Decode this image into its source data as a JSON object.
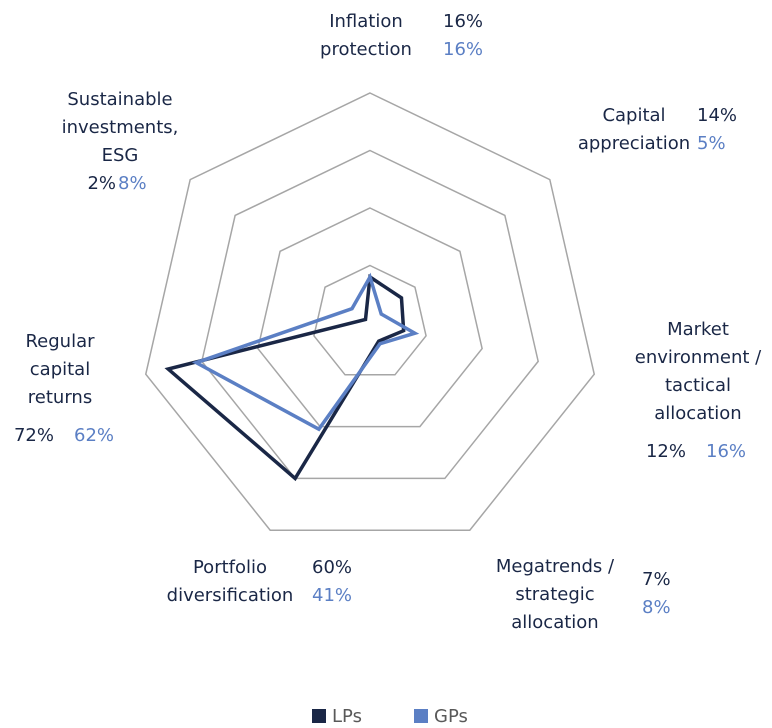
{
  "chart_data": {
    "type": "radar",
    "categories": [
      [
        "Inflation",
        "protection"
      ],
      [
        "Capital",
        "appreciation"
      ],
      [
        "Market",
        "environment /",
        "tactical",
        "allocation"
      ],
      [
        "Megatrends /",
        "strategic",
        "allocation"
      ],
      [
        "Portfolio",
        "diversification"
      ],
      [
        "Regular",
        "capital",
        "returns"
      ],
      [
        "Sustainable",
        "investments,",
        "ESG"
      ]
    ],
    "series": [
      {
        "name": "LPs",
        "color": "#1a2746",
        "values": [
          16,
          14,
          12,
          7,
          60,
          72,
          2
        ],
        "value_labels": [
          "16%",
          "14%",
          "12%",
          "7%",
          "60%",
          "72%",
          "2%"
        ]
      },
      {
        "name": "GPs",
        "color": "#5b7fc4",
        "values": [
          16,
          5,
          16,
          8,
          41,
          62,
          8
        ],
        "value_labels": [
          "16%",
          "5%",
          "16%",
          "8%",
          "41%",
          "62%",
          "8%"
        ]
      }
    ],
    "ylim": [
      0,
      80
    ],
    "yticks": [
      20,
      40,
      60,
      80
    ],
    "grid": true,
    "grid_color": "#a6a6a6",
    "legend": "bottom"
  }
}
